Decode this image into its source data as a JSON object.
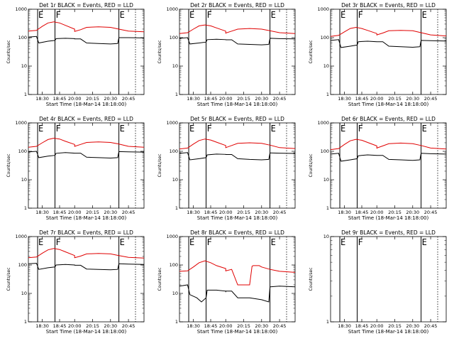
{
  "figure": {
    "background": "#ffffff"
  },
  "chart_data": [
    {
      "type": "line",
      "title": "Det 1r BLACK = Events, RED = LLD",
      "xlabel": "Start Time (18-Mar-14 18:18:00)",
      "ylabel": "Counts/sec",
      "yscale": "log",
      "ylim": [
        1,
        1000
      ],
      "yticks": [
        "1",
        "10",
        "100",
        "1000"
      ],
      "xlim": [
        "18:18",
        "20:58"
      ],
      "xticks": [
        "18:30",
        "18:45",
        "20:00",
        "20:15",
        "20:30",
        "20:45"
      ],
      "markers": [
        {
          "label": "E",
          "time": "18:26"
        },
        {
          "label": "F",
          "time": "18:41"
        },
        {
          "label": "E",
          "time": "20:37"
        }
      ],
      "series": [
        {
          "color": "#000000",
          "x": [
            "18:18",
            "18:25",
            "18:27",
            "18:35",
            "18:41",
            "18:42",
            "18:50",
            "19:00",
            "19:10",
            "19:20",
            "19:30",
            "20:05",
            "20:10",
            "20:20",
            "20:30",
            "20:36",
            "20:37",
            "20:45",
            "20:58"
          ],
          "y": [
            105,
            110,
            65,
            75,
            80,
            92,
            95,
            92,
            88,
            88,
            90,
            90,
            65,
            62,
            60,
            62,
            100,
            100,
            98
          ]
        },
        {
          "color": "#e00000",
          "x": [
            "18:18",
            "18:25",
            "18:30",
            "18:35",
            "18:40",
            "18:45",
            "18:50",
            "19:00",
            "19:10",
            "19:20",
            "19:30",
            "20:05",
            "20:10",
            "20:20",
            "20:30",
            "20:37",
            "20:45",
            "20:58"
          ],
          "y": [
            170,
            180,
            250,
            330,
            360,
            330,
            270,
            200,
            170,
            160,
            165,
            190,
            230,
            240,
            230,
            200,
            170,
            160
          ]
        }
      ]
    },
    {
      "type": "line",
      "title": "Det 2r BLACK = Events, RED = LLD",
      "xlabel": "Start Time (18-Mar-14 18:18:00)",
      "ylabel": "Counts/sec",
      "yscale": "log",
      "ylim": [
        1,
        1000
      ],
      "yticks": [
        "1",
        "10",
        "100",
        "1000"
      ],
      "xlim": [
        "18:18",
        "20:58"
      ],
      "xticks": [
        "18:30",
        "18:45",
        "20:00",
        "20:15",
        "20:30",
        "20:45"
      ],
      "markers": [
        {
          "label": "E",
          "time": "18:26"
        },
        {
          "label": "F",
          "time": "18:41"
        },
        {
          "label": "E",
          "time": "20:37"
        }
      ],
      "series": [
        {
          "color": "#000000",
          "x": [
            "18:18",
            "18:25",
            "18:27",
            "18:35",
            "18:41",
            "18:42",
            "18:50",
            "19:00",
            "19:10",
            "19:20",
            "19:30",
            "20:05",
            "20:10",
            "20:20",
            "20:30",
            "20:36",
            "20:37",
            "20:45",
            "20:58"
          ],
          "y": [
            95,
            100,
            60,
            65,
            70,
            85,
            88,
            85,
            82,
            82,
            84,
            84,
            60,
            58,
            56,
            58,
            95,
            92,
            90
          ]
        },
        {
          "color": "#e00000",
          "x": [
            "18:18",
            "18:25",
            "18:30",
            "18:35",
            "18:40",
            "18:45",
            "18:50",
            "19:00",
            "19:10",
            "19:20",
            "19:30",
            "20:05",
            "20:10",
            "20:20",
            "20:30",
            "20:37",
            "20:45",
            "20:58"
          ],
          "y": [
            140,
            150,
            200,
            260,
            280,
            260,
            220,
            170,
            150,
            140,
            145,
            170,
            200,
            210,
            200,
            175,
            150,
            140
          ]
        }
      ]
    },
    {
      "type": "line",
      "title": "Det 3r BLACK = Events, RED = LLD",
      "xlabel": "Start Time (18-Mar-14 18:18:00)",
      "ylabel": "Counts/sec",
      "yscale": "log",
      "ylim": [
        1,
        1000
      ],
      "yticks": [
        "1",
        "10",
        "100",
        "1000"
      ],
      "xlim": [
        "18:18",
        "20:58"
      ],
      "xticks": [
        "18:30",
        "18:45",
        "20:00",
        "20:15",
        "20:30",
        "20:45"
      ],
      "markers": [
        {
          "label": "E",
          "time": "18:26"
        },
        {
          "label": "F",
          "time": "18:41"
        },
        {
          "label": "E",
          "time": "20:37"
        }
      ],
      "series": [
        {
          "color": "#000000",
          "x": [
            "18:18",
            "18:25",
            "18:27",
            "18:35",
            "18:41",
            "18:42",
            "18:50",
            "19:00",
            "19:10",
            "19:20",
            "19:30",
            "20:05",
            "20:10",
            "20:20",
            "20:30",
            "20:36",
            "20:37",
            "20:45",
            "20:58"
          ],
          "y": [
            80,
            85,
            45,
            50,
            55,
            72,
            75,
            72,
            70,
            70,
            72,
            72,
            50,
            48,
            46,
            48,
            80,
            78,
            76
          ]
        },
        {
          "color": "#e00000",
          "x": [
            "18:18",
            "18:25",
            "18:30",
            "18:35",
            "18:40",
            "18:45",
            "18:50",
            "19:00",
            "19:10",
            "19:20",
            "19:30",
            "20:05",
            "20:10",
            "20:20",
            "20:30",
            "20:37",
            "20:45",
            "20:58"
          ],
          "y": [
            110,
            120,
            160,
            210,
            230,
            210,
            180,
            140,
            125,
            120,
            125,
            145,
            175,
            180,
            175,
            150,
            125,
            115
          ]
        }
      ]
    },
    {
      "type": "line",
      "title": "Det 4r BLACK = Events, RED = LLD",
      "xlabel": "Start Time (18-Mar-14 18:18:00)",
      "ylabel": "Counts/sec",
      "yscale": "log",
      "ylim": [
        1,
        1000
      ],
      "yticks": [
        "1",
        "10",
        "100",
        "1000"
      ],
      "xlim": [
        "18:18",
        "20:58"
      ],
      "xticks": [
        "18:30",
        "18:45",
        "20:00",
        "20:15",
        "20:30",
        "20:45"
      ],
      "markers": [
        {
          "label": "E",
          "time": "18:26"
        },
        {
          "label": "F",
          "time": "18:41"
        },
        {
          "label": "E",
          "time": "20:37"
        }
      ],
      "series": [
        {
          "color": "#000000",
          "x": [
            "18:18",
            "18:25",
            "18:27",
            "18:35",
            "18:41",
            "18:42",
            "18:50",
            "19:00",
            "19:10",
            "19:20",
            "19:30",
            "20:05",
            "20:10",
            "20:20",
            "20:30",
            "20:36",
            "20:37",
            "20:45",
            "20:58"
          ],
          "y": [
            95,
            100,
            60,
            68,
            72,
            85,
            90,
            86,
            84,
            84,
            86,
            86,
            62,
            60,
            58,
            60,
            98,
            96,
            94
          ]
        },
        {
          "color": "#e00000",
          "x": [
            "18:18",
            "18:25",
            "18:30",
            "18:35",
            "18:40",
            "18:45",
            "18:50",
            "19:00",
            "19:10",
            "19:20",
            "19:30",
            "20:05",
            "20:10",
            "20:20",
            "20:30",
            "20:37",
            "20:45",
            "20:58"
          ],
          "y": [
            140,
            150,
            200,
            260,
            290,
            270,
            225,
            175,
            150,
            145,
            150,
            175,
            205,
            215,
            205,
            180,
            150,
            140
          ]
        }
      ]
    },
    {
      "type": "line",
      "title": "Det 5r BLACK = Events, RED = LLD",
      "xlabel": "Start Time (18-Mar-14 18:18:00)",
      "ylabel": "Counts/sec",
      "yscale": "log",
      "ylim": [
        1,
        1000
      ],
      "yticks": [
        "1",
        "10",
        "100",
        "1000"
      ],
      "xlim": [
        "18:18",
        "20:58"
      ],
      "xticks": [
        "18:30",
        "18:45",
        "20:00",
        "20:15",
        "20:30",
        "20:45"
      ],
      "markers": [
        {
          "label": "E",
          "time": "18:26"
        },
        {
          "label": "F",
          "time": "18:41"
        },
        {
          "label": "E",
          "time": "20:37"
        }
      ],
      "series": [
        {
          "color": "#000000",
          "x": [
            "18:18",
            "18:25",
            "18:27",
            "18:35",
            "18:41",
            "18:42",
            "18:50",
            "19:00",
            "19:10",
            "19:20",
            "19:30",
            "20:05",
            "20:10",
            "20:20",
            "20:30",
            "20:36",
            "20:37",
            "20:45",
            "20:58"
          ],
          "y": [
            85,
            90,
            50,
            55,
            60,
            75,
            80,
            78,
            75,
            75,
            77,
            77,
            55,
            52,
            50,
            52,
            88,
            86,
            84
          ]
        },
        {
          "color": "#e00000",
          "x": [
            "18:18",
            "18:25",
            "18:30",
            "18:35",
            "18:40",
            "18:45",
            "18:50",
            "19:00",
            "19:10",
            "19:20",
            "19:30",
            "20:05",
            "20:10",
            "20:20",
            "20:30",
            "20:37",
            "20:45",
            "20:58"
          ],
          "y": [
            120,
            130,
            180,
            240,
            270,
            250,
            210,
            160,
            140,
            130,
            135,
            160,
            190,
            200,
            190,
            165,
            135,
            125
          ]
        }
      ]
    },
    {
      "type": "line",
      "title": "Det 6r BLACK = Events, RED = LLD",
      "xlabel": "Start Time (18-Mar-14 18:18:00)",
      "ylabel": "Counts/sec",
      "yscale": "log",
      "ylim": [
        1,
        1000
      ],
      "yticks": [
        "1",
        "10",
        "100",
        "1000"
      ],
      "xlim": [
        "18:18",
        "20:58"
      ],
      "xticks": [
        "18:30",
        "18:45",
        "20:00",
        "20:15",
        "20:30",
        "20:45"
      ],
      "markers": [
        {
          "label": "E",
          "time": "18:26"
        },
        {
          "label": "F",
          "time": "18:41"
        },
        {
          "label": "E",
          "time": "20:37"
        }
      ],
      "series": [
        {
          "color": "#000000",
          "x": [
            "18:18",
            "18:25",
            "18:27",
            "18:35",
            "18:41",
            "18:42",
            "18:50",
            "19:00",
            "19:10",
            "19:20",
            "19:30",
            "20:05",
            "20:10",
            "20:20",
            "20:30",
            "20:36",
            "20:37",
            "20:45",
            "20:58"
          ],
          "y": [
            80,
            85,
            45,
            50,
            55,
            70,
            75,
            72,
            70,
            70,
            72,
            72,
            52,
            50,
            48,
            50,
            85,
            82,
            80
          ]
        },
        {
          "color": "#e00000",
          "x": [
            "18:18",
            "18:25",
            "18:30",
            "18:35",
            "18:40",
            "18:45",
            "18:50",
            "19:00",
            "19:10",
            "19:20",
            "19:30",
            "20:05",
            "20:10",
            "20:20",
            "20:30",
            "20:37",
            "20:45",
            "20:58"
          ],
          "y": [
            115,
            125,
            175,
            235,
            265,
            245,
            205,
            155,
            135,
            125,
            130,
            155,
            185,
            195,
            185,
            160,
            130,
            120
          ]
        }
      ]
    },
    {
      "type": "line",
      "title": "Det 7r BLACK = Events, RED = LLD",
      "xlabel": "Start Time (18-Mar-14 18:18:00)",
      "ylabel": "Counts/sec",
      "yscale": "log",
      "ylim": [
        1,
        1000
      ],
      "yticks": [
        "1",
        "10",
        "100",
        "1000"
      ],
      "xlim": [
        "18:18",
        "20:58"
      ],
      "xticks": [
        "18:30",
        "18:45",
        "20:00",
        "20:15",
        "20:30",
        "20:45"
      ],
      "markers": [
        {
          "label": "E",
          "time": "18:26"
        },
        {
          "label": "F",
          "time": "18:41"
        },
        {
          "label": "E",
          "time": "20:37"
        }
      ],
      "series": [
        {
          "color": "#000000",
          "x": [
            "18:18",
            "18:25",
            "18:27",
            "18:35",
            "18:41",
            "18:42",
            "18:50",
            "19:00",
            "19:10",
            "19:20",
            "19:30",
            "20:05",
            "20:10",
            "20:20",
            "20:30",
            "20:36",
            "20:37",
            "20:45",
            "20:58"
          ],
          "y": [
            110,
            115,
            70,
            80,
            85,
            100,
            105,
            100,
            96,
            96,
            98,
            98,
            72,
            70,
            68,
            70,
            110,
            108,
            105
          ]
        },
        {
          "color": "#e00000",
          "x": [
            "18:18",
            "18:25",
            "18:30",
            "18:35",
            "18:40",
            "18:45",
            "18:50",
            "19:00",
            "19:10",
            "19:20",
            "19:30",
            "20:05",
            "20:10",
            "20:20",
            "20:30",
            "20:37",
            "20:45",
            "20:58"
          ],
          "y": [
            180,
            190,
            260,
            340,
            380,
            350,
            290,
            215,
            185,
            175,
            180,
            205,
            245,
            255,
            245,
            215,
            185,
            175
          ]
        }
      ]
    },
    {
      "type": "line",
      "title": "Det 8r BLACK = Events, RED = LLD",
      "xlabel": "Start Time (18-Mar-14 18:18:00)",
      "ylabel": "Counts/sec",
      "yscale": "log",
      "ylim": [
        1,
        1000
      ],
      "yticks": [
        "1",
        "10",
        "100",
        "1000"
      ],
      "xlim": [
        "18:18",
        "20:58"
      ],
      "xticks": [
        "18:30",
        "18:45",
        "20:00",
        "20:15",
        "20:30",
        "20:45"
      ],
      "markers": [
        {
          "label": "E",
          "time": "18:26"
        },
        {
          "label": "F",
          "time": "18:41"
        },
        {
          "label": "E",
          "time": "20:37"
        }
      ],
      "series": [
        {
          "color": "#000000",
          "x": [
            "18:18",
            "18:25",
            "18:27",
            "18:33",
            "18:37",
            "18:41",
            "18:42",
            "18:50",
            "19:00",
            "19:10",
            "19:20",
            "19:30",
            "20:05",
            "20:10",
            "20:20",
            "20:30",
            "20:36",
            "20:37",
            "20:45",
            "20:58"
          ],
          "y": [
            18,
            20,
            9,
            7,
            5,
            7,
            13,
            13,
            12,
            11,
            11,
            12,
            12,
            7,
            7,
            6,
            5,
            17,
            18,
            17
          ]
        },
        {
          "color": "#e00000",
          "x": [
            "18:18",
            "18:25",
            "18:30",
            "18:35",
            "18:40",
            "18:45",
            "18:50",
            "19:00",
            "19:10",
            "19:20",
            "19:30",
            "20:05",
            "20:10",
            "20:20",
            "20:22",
            "20:23",
            "20:28",
            "20:30",
            "20:37",
            "20:45",
            "20:58"
          ],
          "y": [
            60,
            62,
            85,
            120,
            140,
            120,
            95,
            75,
            65,
            60,
            62,
            70,
            20,
            20,
            90,
            95,
            95,
            85,
            70,
            60,
            55
          ]
        }
      ]
    },
    {
      "type": "line",
      "title": "Det 9r BLACK = Events, RED = LLD",
      "xlabel": "Start Time (18-Mar-14 18:18:00)",
      "ylabel": "Counts/sec",
      "yscale": "log",
      "ylim": [
        1,
        10
      ],
      "yticks": [
        "1",
        "10"
      ],
      "xlim": [
        "18:18",
        "20:58"
      ],
      "xticks": [
        "18:30",
        "18:45",
        "20:00",
        "20:15",
        "20:30",
        "20:45"
      ],
      "markers": [
        {
          "label": "E",
          "time": "18:26"
        },
        {
          "label": "F",
          "time": "18:41"
        },
        {
          "label": "E",
          "time": "20:37"
        }
      ],
      "series": []
    }
  ]
}
